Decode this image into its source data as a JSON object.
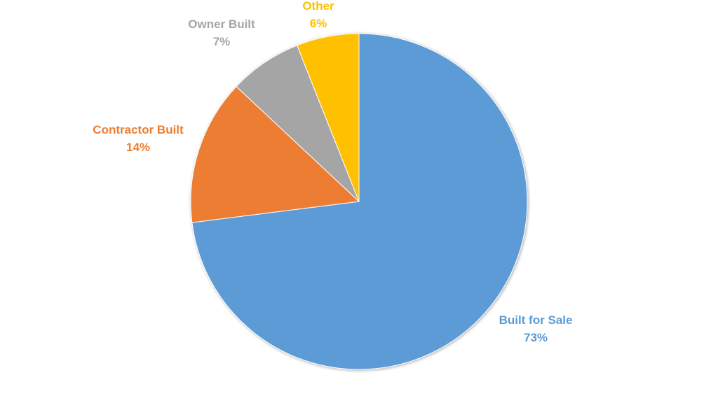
{
  "chart_data": {
    "type": "pie",
    "title": "",
    "slices": [
      {
        "name": "Built for Sale",
        "value": 73,
        "label": "73%",
        "color": "#5B9BD5"
      },
      {
        "name": "Contractor Built",
        "value": 14,
        "label": "14%",
        "color": "#ED7D31"
      },
      {
        "name": "Owner Built",
        "value": 7,
        "label": "7%",
        "color": "#A5A5A5"
      },
      {
        "name": "Other",
        "value": 6,
        "label": "6%",
        "color": "#FFC000"
      }
    ],
    "start_angle": "12 o'clock",
    "direction": "clockwise",
    "legend": "none",
    "data_labels": "outside, category name and percentage"
  }
}
